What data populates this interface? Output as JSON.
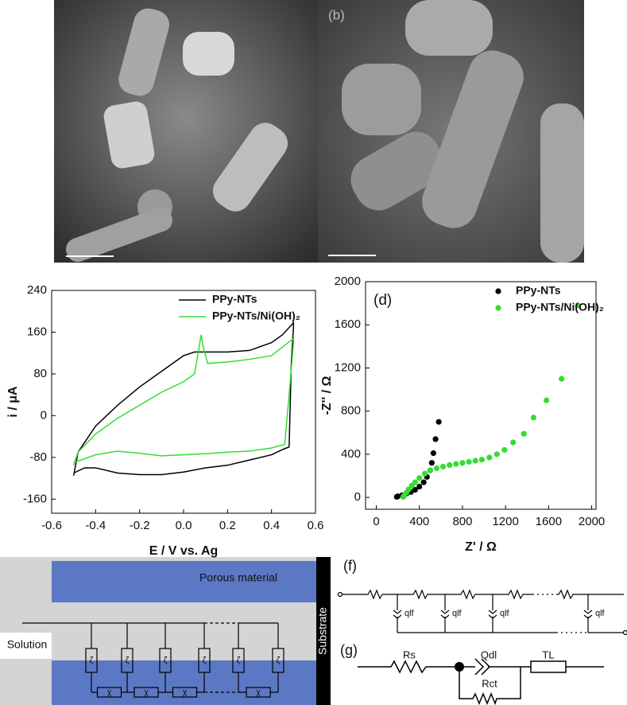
{
  "chart_data": [
    {
      "type": "line",
      "x_label": "E / V vs. Ag",
      "y_label": "i / μA",
      "xlim": [
        -0.6,
        0.6
      ],
      "ylim": [
        -187,
        240
      ],
      "xticks": [
        -0.6,
        -0.4,
        -0.2,
        {
          "value": 0,
          "label": "0.0"
        },
        0.2,
        0.4,
        0.6
      ],
      "yticks": [
        -160,
        -80,
        0,
        80,
        160,
        240
      ],
      "legend": "upper right",
      "series": [
        {
          "name": "PPy-NTs",
          "color": "#000000",
          "x": [
            -0.5,
            -0.48,
            -0.4,
            -0.3,
            -0.2,
            -0.1,
            0,
            0.05,
            0.1,
            0.2,
            0.3,
            0.4,
            0.45,
            0.5,
            0.5,
            0.49,
            0.48,
            0.45,
            0.4,
            0.3,
            0.2,
            0.1,
            0,
            -0.1,
            -0.2,
            -0.3,
            -0.4,
            -0.45,
            -0.5
          ],
          "values": [
            -115,
            -70,
            -20,
            20,
            55,
            85,
            115,
            122,
            122,
            122,
            125,
            140,
            155,
            178,
            170,
            100,
            -60,
            -65,
            -75,
            -85,
            -95,
            -100,
            -108,
            -113,
            -113,
            -110,
            -100,
            -100,
            -110
          ]
        },
        {
          "name": "PPy-NTs/Ni(OH)₂",
          "color": "#33dd33",
          "x": [
            -0.5,
            -0.48,
            -0.4,
            -0.3,
            -0.2,
            -0.1,
            0,
            0.05,
            0.07,
            0.08,
            0.09,
            0.11,
            0.2,
            0.3,
            0.4,
            0.5,
            0.5,
            0.48,
            0.46,
            0.4,
            0.3,
            0.2,
            0.1,
            0,
            -0.1,
            -0.2,
            -0.3,
            -0.4,
            -0.5
          ],
          "values": [
            -95,
            -70,
            -35,
            -5,
            20,
            45,
            65,
            80,
            130,
            155,
            130,
            100,
            103,
            108,
            115,
            148,
            140,
            40,
            -55,
            -62,
            -68,
            -70,
            -73,
            -75,
            -77,
            -72,
            -68,
            -75,
            -90
          ]
        }
      ]
    },
    {
      "type": "scatter",
      "x_label": "Z' / Ω",
      "y_label": "-Z'' / Ω",
      "annotation": "(d)",
      "xlim": [
        -100,
        2040
      ],
      "ylim": [
        -110,
        2000
      ],
      "xticks": [
        0,
        400,
        800,
        1200,
        1600,
        2000
      ],
      "yticks": [
        0,
        400,
        800,
        1200,
        1600,
        2000
      ],
      "legend": "upper right",
      "series": [
        {
          "name": "PPy-NTs",
          "color": "#000000",
          "x": [
            190,
            200,
            240,
            280,
            320,
            360,
            400,
            440,
            470,
            500,
            515,
            530,
            550,
            580
          ],
          "values": [
            5,
            10,
            20,
            35,
            50,
            70,
            100,
            140,
            190,
            250,
            320,
            410,
            540,
            700
          ]
        },
        {
          "name": "PPy-NTs/Ni(OH)₂",
          "color": "#33dd33",
          "x": [
            250,
            260,
            280,
            300,
            330,
            360,
            400,
            450,
            500,
            560,
            620,
            680,
            740,
            800,
            860,
            920,
            980,
            1050,
            1120,
            1190,
            1270,
            1370,
            1460,
            1580,
            1720,
            1870
          ],
          "values": [
            5,
            20,
            45,
            75,
            110,
            140,
            180,
            220,
            250,
            270,
            285,
            300,
            310,
            320,
            330,
            340,
            350,
            370,
            400,
            440,
            510,
            590,
            740,
            900,
            1100,
            1780
          ]
        }
      ]
    }
  ],
  "sem_b_label": "(b)",
  "diagram": {
    "porous_material": "Porous material",
    "solution": "Solution",
    "substrate": "Substrate",
    "zeta": "ζ",
    "chi": "χ"
  },
  "circuit_f": {
    "label": "(f)",
    "element": "qlf"
  },
  "circuit_g": {
    "label": "(g)",
    "rs": "Rs",
    "qdl": "Qdl",
    "tl": "TL",
    "rct": "Rct"
  }
}
